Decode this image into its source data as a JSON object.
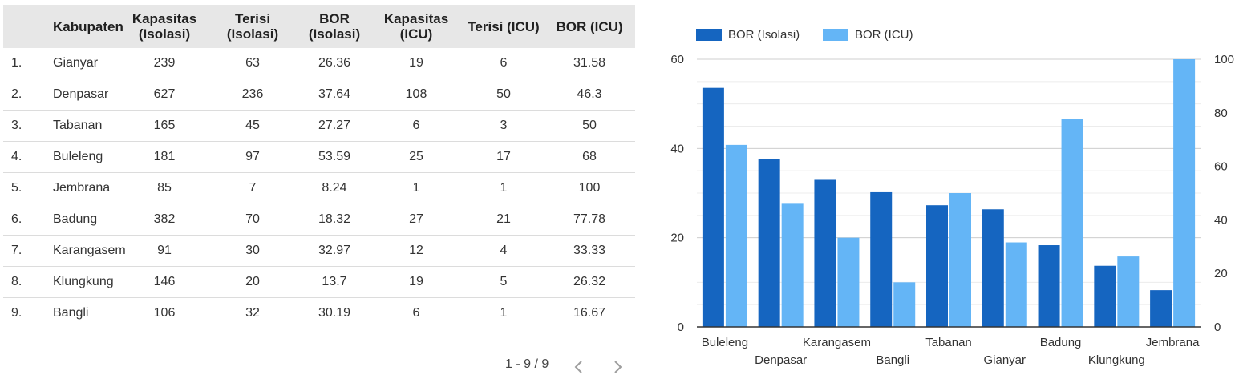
{
  "table": {
    "columns": [
      {
        "key": "no",
        "label": ""
      },
      {
        "key": "kabupaten",
        "label": "Kabupaten"
      },
      {
        "key": "kap_iso",
        "label": "Kapasitas (Isolasi)"
      },
      {
        "key": "ter_iso",
        "label": "Terisi (Isolasi)"
      },
      {
        "key": "bor_iso",
        "label": "BOR (Isolasi)"
      },
      {
        "key": "kap_icu",
        "label": "Kapasitas (ICU)"
      },
      {
        "key": "ter_icu",
        "label": "Terisi (ICU)"
      },
      {
        "key": "bor_icu",
        "label": "BOR (ICU)"
      }
    ],
    "rows": [
      {
        "no": "1.",
        "kabupaten": "Gianyar",
        "kap_iso": "239",
        "ter_iso": "63",
        "bor_iso": "26.36",
        "kap_icu": "19",
        "ter_icu": "6",
        "bor_icu": "31.58"
      },
      {
        "no": "2.",
        "kabupaten": "Denpasar",
        "kap_iso": "627",
        "ter_iso": "236",
        "bor_iso": "37.64",
        "kap_icu": "108",
        "ter_icu": "50",
        "bor_icu": "46.3"
      },
      {
        "no": "3.",
        "kabupaten": "Tabanan",
        "kap_iso": "165",
        "ter_iso": "45",
        "bor_iso": "27.27",
        "kap_icu": "6",
        "ter_icu": "3",
        "bor_icu": "50"
      },
      {
        "no": "4.",
        "kabupaten": "Buleleng",
        "kap_iso": "181",
        "ter_iso": "97",
        "bor_iso": "53.59",
        "kap_icu": "25",
        "ter_icu": "17",
        "bor_icu": "68"
      },
      {
        "no": "5.",
        "kabupaten": "Jembrana",
        "kap_iso": "85",
        "ter_iso": "7",
        "bor_iso": "8.24",
        "kap_icu": "1",
        "ter_icu": "1",
        "bor_icu": "100"
      },
      {
        "no": "6.",
        "kabupaten": "Badung",
        "kap_iso": "382",
        "ter_iso": "70",
        "bor_iso": "18.32",
        "kap_icu": "27",
        "ter_icu": "21",
        "bor_icu": "77.78"
      },
      {
        "no": "7.",
        "kabupaten": "Karangasem",
        "kap_iso": "91",
        "ter_iso": "30",
        "bor_iso": "32.97",
        "kap_icu": "12",
        "ter_icu": "4",
        "bor_icu": "33.33"
      },
      {
        "no": "8.",
        "kabupaten": "Klungkung",
        "kap_iso": "146",
        "ter_iso": "20",
        "bor_iso": "13.7",
        "kap_icu": "19",
        "ter_icu": "5",
        "bor_icu": "26.32"
      },
      {
        "no": "9.",
        "kabupaten": "Bangli",
        "kap_iso": "106",
        "ter_iso": "32",
        "bor_iso": "30.19",
        "kap_icu": "6",
        "ter_icu": "1",
        "bor_icu": "16.67"
      }
    ]
  },
  "pagination": {
    "label": "1 - 9 / 9",
    "prev_icon": "chevron-left-icon",
    "next_icon": "chevron-right-icon"
  },
  "chart_data": {
    "type": "bar",
    "categories": [
      "Buleleng",
      "Denpasar",
      "Karangasem",
      "Bangli",
      "Tabanan",
      "Gianyar",
      "Badung",
      "Klungkung",
      "Jembrana"
    ],
    "series": [
      {
        "name": "BOR (Isolasi)",
        "axis": "left",
        "color": "#1565c0",
        "values": [
          53.59,
          37.64,
          32.97,
          30.19,
          27.27,
          26.36,
          18.32,
          13.7,
          8.24
        ]
      },
      {
        "name": "BOR (ICU)",
        "axis": "right",
        "color": "#64b5f6",
        "values": [
          68,
          46.3,
          33.33,
          16.67,
          50,
          31.58,
          77.78,
          26.32,
          100
        ]
      }
    ],
    "ylim_left": [
      0,
      60
    ],
    "ylim_right": [
      0,
      100
    ],
    "yticks_left": [
      0,
      20,
      40,
      60
    ],
    "yticks_right": [
      0,
      20,
      40,
      60,
      80,
      100
    ],
    "grid": true,
    "legend_position": "top-left"
  }
}
